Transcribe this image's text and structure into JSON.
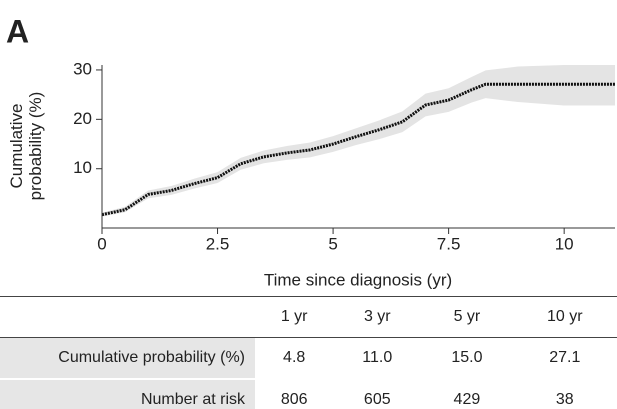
{
  "chart_data": {
    "type": "line",
    "panel_label": "A",
    "y_label": "Cumulative probability (%)",
    "x_label": "Time since diagnosis (yr)",
    "xlim": [
      0,
      11.1
    ],
    "ylim": [
      -2,
      31
    ],
    "xticks": [
      0,
      2.5,
      5,
      7.5,
      10
    ],
    "yticks": [
      10,
      20,
      30
    ],
    "series": [
      {
        "color": "#111111",
        "band_color": "#e4e4e4",
        "x": [
          0,
          0.5,
          1,
          1.5,
          2,
          2.5,
          3,
          3.5,
          4,
          4.5,
          5,
          5.5,
          6,
          6.5,
          7,
          7.5,
          8,
          8.3,
          9,
          10,
          11.1
        ],
        "values": [
          0.7,
          1.7,
          4.8,
          5.6,
          7,
          8.2,
          11,
          12.4,
          13.2,
          13.8,
          15,
          16.5,
          17.9,
          19.5,
          22.9,
          23.9,
          26,
          27.1,
          27.1,
          27.1,
          27.1
        ],
        "lower": [
          0.3,
          1.2,
          4,
          4.7,
          6,
          7.1,
          9.8,
          11.1,
          11.8,
          12.3,
          13.4,
          14.8,
          16,
          17.4,
          20.6,
          21.5,
          23.4,
          24.3,
          23.5,
          22.8,
          22.8
        ],
        "upper": [
          1.1,
          2.3,
          5.6,
          6.5,
          8,
          9.3,
          12.2,
          13.7,
          14.6,
          15.3,
          16.6,
          18.2,
          19.8,
          21.6,
          25.2,
          26.3,
          28.6,
          29.9,
          30.7,
          31,
          31
        ]
      }
    ]
  },
  "table": {
    "header": [
      "1 yr",
      "3 yr",
      "5 yr",
      "10 yr"
    ],
    "rows": [
      {
        "label": "Cumulative probability (%)",
        "cells": [
          "4.8",
          "11.0",
          "15.0",
          "27.1"
        ]
      },
      {
        "label": "Number at risk",
        "cells": [
          "806",
          "605",
          "429",
          "38"
        ]
      }
    ]
  }
}
